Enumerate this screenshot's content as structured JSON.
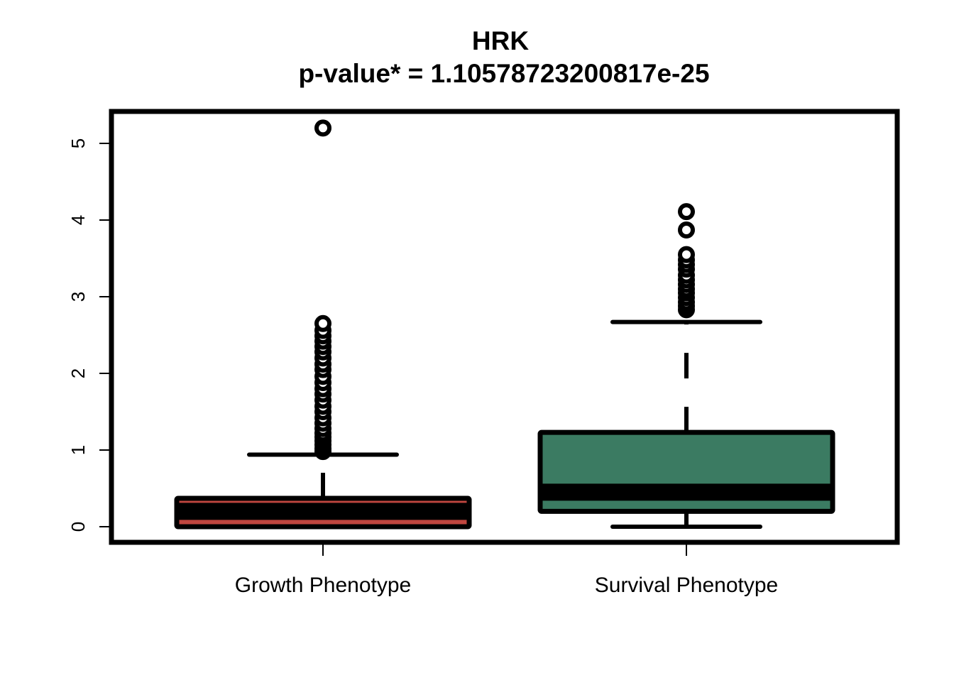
{
  "chart_data": {
    "type": "box",
    "title": "HRK",
    "subtitle": "p-value* = 1.10578723200817e-25",
    "ylim": [
      0,
      5.2
    ],
    "yticks": [
      0,
      1,
      2,
      3,
      4,
      5
    ],
    "ytick_labels": [
      "0",
      "1",
      "2",
      "3",
      "4",
      "5"
    ],
    "grid": false,
    "legend": "none",
    "categories": [
      "Growth Phenotype",
      "Survival Phenotype"
    ],
    "series": [
      {
        "category": "Growth Phenotype",
        "color": "#c0463f",
        "whisker_low": 0.0,
        "q1": 0.0,
        "median": 0.2,
        "q3": 0.37,
        "whisker_high": 0.94,
        "outliers": [
          0.98,
          1.02,
          1.07,
          1.12,
          1.17,
          1.22,
          1.28,
          1.35,
          1.42,
          1.5,
          1.57,
          1.65,
          1.73,
          1.8,
          1.88,
          1.96,
          2.05,
          2.12,
          2.2,
          2.28,
          2.35,
          2.42,
          2.49,
          2.56,
          2.65,
          5.2
        ]
      },
      {
        "category": "Survival Phenotype",
        "color": "#3b7b62",
        "whisker_low": 0.0,
        "q1": 0.2,
        "median": 0.45,
        "q3": 1.23,
        "whisker_high": 2.67,
        "outliers": [
          2.83,
          2.88,
          2.93,
          2.99,
          3.05,
          3.1,
          3.16,
          3.22,
          3.28,
          3.36,
          3.42,
          3.48,
          3.55,
          3.87,
          4.11
        ]
      }
    ]
  }
}
